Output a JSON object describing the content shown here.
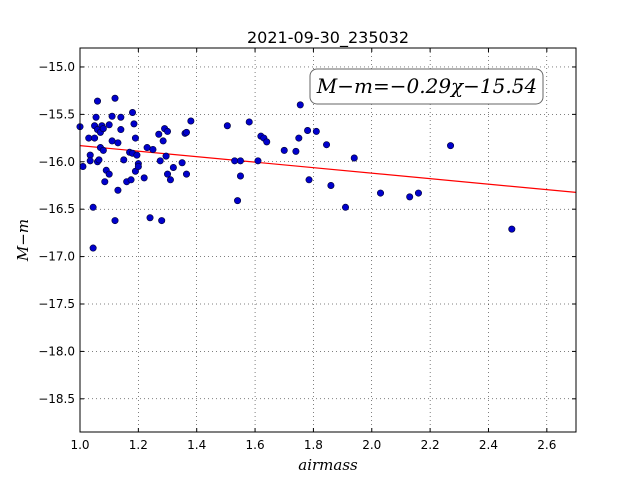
{
  "chart_data": {
    "type": "scatter",
    "title": "2021-09-30_235032",
    "xlabel": "airmass",
    "ylabel": "M−m",
    "xlim": [
      1.0,
      2.7
    ],
    "ylim": [
      -18.85,
      -14.8
    ],
    "y_inverted": true,
    "grid": true,
    "x_ticks": [
      1.0,
      1.2,
      1.4,
      1.6,
      1.8,
      2.0,
      2.2,
      2.4,
      2.6
    ],
    "x_tick_labels": [
      "1.0",
      "1.2",
      "1.4",
      "1.6",
      "1.8",
      "2.0",
      "2.2",
      "2.4",
      "2.6"
    ],
    "y_ticks": [
      -15.0,
      -15.5,
      -16.0,
      -16.5,
      -17.0,
      -17.5,
      -18.0,
      -18.5
    ],
    "y_tick_labels": [
      "−15.0",
      "−15.5",
      "−16.0",
      "−16.5",
      "−17.0",
      "−17.5",
      "−18.0",
      "−18.5"
    ],
    "annotation": {
      "text": "M−m=−0.29χ−15.54",
      "placement": "top-right"
    },
    "fit_line": {
      "slope": -0.29,
      "intercept": -15.54,
      "color": "#ff0000"
    },
    "point_color": "#0000cc",
    "points": [
      [
        1.0,
        -15.63
      ],
      [
        1.01,
        -16.05
      ],
      [
        1.03,
        -15.75
      ],
      [
        1.035,
        -15.93
      ],
      [
        1.035,
        -15.99
      ],
      [
        1.045,
        -16.48
      ],
      [
        1.045,
        -16.91
      ],
      [
        1.05,
        -15.75
      ],
      [
        1.05,
        -15.62
      ],
      [
        1.055,
        -15.53
      ],
      [
        1.06,
        -15.36
      ],
      [
        1.06,
        -15.66
      ],
      [
        1.06,
        -16.0
      ],
      [
        1.065,
        -15.98
      ],
      [
        1.07,
        -15.85
      ],
      [
        1.07,
        -15.69
      ],
      [
        1.075,
        -15.62
      ],
      [
        1.08,
        -15.65
      ],
      [
        1.08,
        -15.88
      ],
      [
        1.085,
        -16.21
      ],
      [
        1.09,
        -16.09
      ],
      [
        1.1,
        -15.61
      ],
      [
        1.1,
        -16.13
      ],
      [
        1.11,
        -15.52
      ],
      [
        1.11,
        -15.78
      ],
      [
        1.12,
        -15.33
      ],
      [
        1.12,
        -16.62
      ],
      [
        1.13,
        -16.3
      ],
      [
        1.13,
        -15.8
      ],
      [
        1.14,
        -15.53
      ],
      [
        1.14,
        -15.66
      ],
      [
        1.15,
        -15.98
      ],
      [
        1.16,
        -16.21
      ],
      [
        1.17,
        -15.9
      ],
      [
        1.175,
        -16.19
      ],
      [
        1.18,
        -15.91
      ],
      [
        1.18,
        -15.48
      ],
      [
        1.185,
        -15.6
      ],
      [
        1.19,
        -15.75
      ],
      [
        1.19,
        -16.1
      ],
      [
        1.195,
        -15.93
      ],
      [
        1.2,
        -16.02
      ],
      [
        1.2,
        -16.05
      ],
      [
        1.22,
        -16.17
      ],
      [
        1.23,
        -15.85
      ],
      [
        1.24,
        -16.59
      ],
      [
        1.25,
        -15.87
      ],
      [
        1.27,
        -15.71
      ],
      [
        1.275,
        -15.99
      ],
      [
        1.28,
        -16.62
      ],
      [
        1.285,
        -15.78
      ],
      [
        1.29,
        -15.65
      ],
      [
        1.295,
        -15.94
      ],
      [
        1.3,
        -15.68
      ],
      [
        1.3,
        -16.13
      ],
      [
        1.31,
        -16.19
      ],
      [
        1.32,
        -16.06
      ],
      [
        1.35,
        -16.01
      ],
      [
        1.36,
        -15.7
      ],
      [
        1.365,
        -15.69
      ],
      [
        1.365,
        -16.13
      ],
      [
        1.38,
        -15.57
      ],
      [
        1.505,
        -15.62
      ],
      [
        1.53,
        -15.99
      ],
      [
        1.54,
        -16.41
      ],
      [
        1.55,
        -15.99
      ],
      [
        1.55,
        -16.15
      ],
      [
        1.58,
        -15.58
      ],
      [
        1.61,
        -15.99
      ],
      [
        1.62,
        -15.73
      ],
      [
        1.63,
        -15.75
      ],
      [
        1.64,
        -15.79
      ],
      [
        1.7,
        -15.88
      ],
      [
        1.74,
        -15.89
      ],
      [
        1.75,
        -15.75
      ],
      [
        1.755,
        -15.4
      ],
      [
        1.78,
        -15.67
      ],
      [
        1.785,
        -16.19
      ],
      [
        1.81,
        -15.68
      ],
      [
        1.845,
        -15.82
      ],
      [
        1.86,
        -16.25
      ],
      [
        1.91,
        -16.48
      ],
      [
        1.94,
        -15.96
      ],
      [
        2.03,
        -16.33
      ],
      [
        2.13,
        -16.37
      ],
      [
        2.16,
        -16.33
      ],
      [
        2.27,
        -15.83
      ],
      [
        2.48,
        -16.71
      ]
    ]
  }
}
